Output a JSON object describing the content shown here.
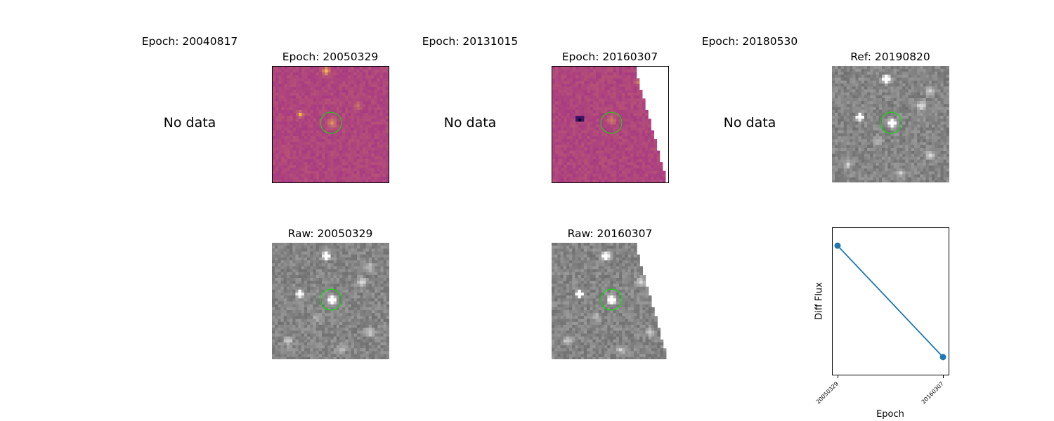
{
  "top_row": [
    {
      "title": "Epoch: 20040817",
      "placeholder": "No data"
    },
    {
      "title": "Epoch: 20050329"
    },
    {
      "title": "Epoch: 20131015",
      "placeholder": "No data"
    },
    {
      "title": "Epoch: 20160307"
    },
    {
      "title": "Epoch: 20180530",
      "placeholder": "No data"
    },
    {
      "title": "Ref: 20190820"
    }
  ],
  "bottom_row": [
    {
      "title": "Raw: 20050329"
    },
    {
      "title": "Raw: 20160307"
    }
  ],
  "colors": {
    "diff_background": "#a83a82",
    "raw_background": "#787878",
    "aperture": "#00e600",
    "series": "#1f77b4"
  },
  "chart_data": {
    "type": "line",
    "x": [
      "20050329",
      "20160307"
    ],
    "series": [
      {
        "values": [
          0.92,
          0.08
        ],
        "color": "#1f77b4"
      }
    ],
    "xlabel": "Epoch",
    "ylabel": "Diff Flux",
    "grid": false
  }
}
